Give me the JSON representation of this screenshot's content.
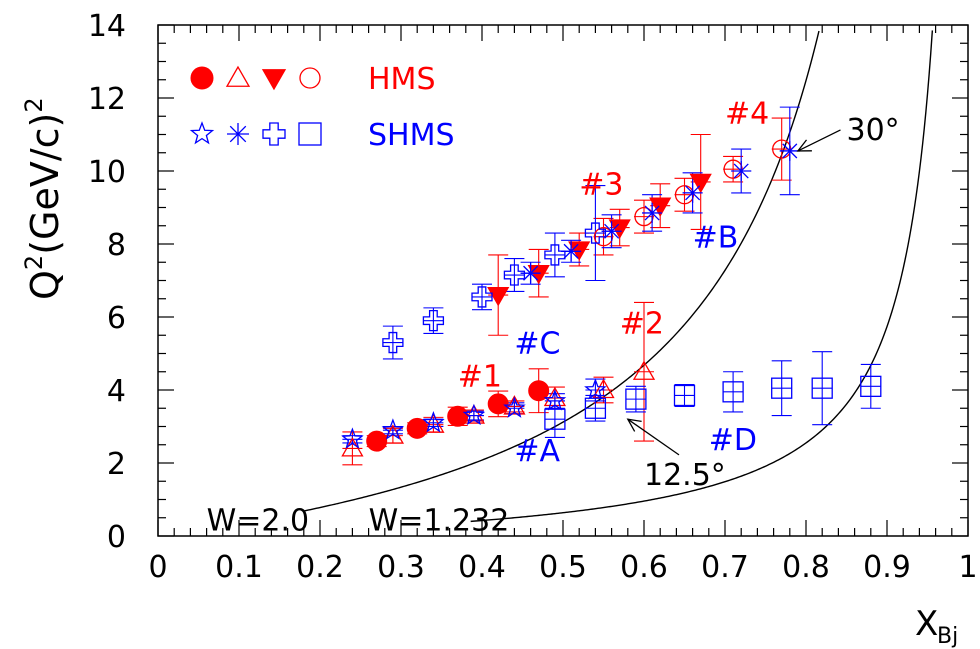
{
  "chart_data": {
    "type": "scatter",
    "xlabel": "X",
    "xlabel_sub": "Bj",
    "ylabel_base": "Q",
    "ylabel_sup": "2",
    "ylabel_rest": "(GeV/c)",
    "ylabel_sup2": "2",
    "xlim": [
      0,
      1
    ],
    "ylim": [
      0,
      14
    ],
    "x_ticks": [
      "0",
      "0.1",
      "0.2",
      "0.3",
      "0.4",
      "0.5",
      "0.6",
      "0.7",
      "0.8",
      "0.9",
      "1"
    ],
    "y_ticks": [
      "0",
      "2",
      "4",
      "6",
      "8",
      "10",
      "12",
      "14"
    ],
    "colors": {
      "hms": "#ff0000",
      "shms": "#0000ff",
      "axis": "#000000"
    },
    "legend": [
      {
        "text": "HMS",
        "color": "#ff0000",
        "markers": [
          "filled-circle",
          "open-triangle-up",
          "filled-triangle-down",
          "open-circle"
        ]
      },
      {
        "text": "SHMS",
        "color": "#0000ff",
        "markers": [
          "open-star",
          "asterisk",
          "open-cross",
          "open-square"
        ]
      }
    ],
    "series": [
      {
        "spectrometer": "HMS",
        "marker": "filled-circle",
        "color": "#ff0000",
        "points": [
          [
            0.27,
            2.6,
            0.15
          ],
          [
            0.32,
            2.95,
            0.15
          ],
          [
            0.37,
            3.28,
            0.25
          ],
          [
            0.42,
            3.62,
            0.35
          ],
          [
            0.47,
            3.98,
            0.6
          ]
        ]
      },
      {
        "spectrometer": "HMS",
        "marker": "open-triangle-up",
        "color": "#ff0000",
        "points": [
          [
            0.24,
            2.4,
            0.45
          ],
          [
            0.29,
            2.75,
            0.2
          ],
          [
            0.34,
            3.05,
            0.2
          ],
          [
            0.39,
            3.3,
            0.15
          ],
          [
            0.44,
            3.55,
            0.15
          ],
          [
            0.49,
            3.78,
            0.3
          ],
          [
            0.55,
            4.0,
            0.35
          ],
          [
            0.6,
            4.5,
            1.9
          ]
        ]
      },
      {
        "spectrometer": "HMS",
        "marker": "filled-triangle-down",
        "color": "#ff0000",
        "points": [
          [
            0.42,
            6.6,
            1.1
          ],
          [
            0.47,
            7.2,
            0.65
          ],
          [
            0.52,
            7.85,
            0.45
          ],
          [
            0.57,
            8.45,
            0.5
          ],
          [
            0.62,
            9.05,
            0.6
          ],
          [
            0.67,
            9.7,
            1.3
          ]
        ]
      },
      {
        "spectrometer": "HMS",
        "marker": "open-circle",
        "color": "#ff0000",
        "points": [
          [
            0.55,
            8.2,
            0.5
          ],
          [
            0.6,
            8.75,
            0.45
          ],
          [
            0.65,
            9.35,
            0.45
          ],
          [
            0.71,
            10.05,
            0.35
          ],
          [
            0.77,
            10.6,
            0.85
          ]
        ]
      },
      {
        "spectrometer": "SHMS",
        "marker": "open-star",
        "color": "#0000ff",
        "points": [
          [
            0.24,
            2.65,
            0.1
          ],
          [
            0.29,
            2.9,
            0.1
          ],
          [
            0.34,
            3.1,
            0.1
          ],
          [
            0.39,
            3.3,
            0.12
          ],
          [
            0.44,
            3.5,
            0.15
          ],
          [
            0.49,
            3.7,
            0.2
          ],
          [
            0.54,
            4.0,
            0.3
          ]
        ]
      },
      {
        "spectrometer": "SHMS",
        "marker": "asterisk",
        "color": "#0000ff",
        "points": [
          [
            0.46,
            7.2,
            0.3
          ],
          [
            0.51,
            7.8,
            0.3
          ],
          [
            0.56,
            8.35,
            0.45
          ],
          [
            0.61,
            8.85,
            0.5
          ],
          [
            0.66,
            9.4,
            0.55
          ],
          [
            0.72,
            10.0,
            0.6
          ],
          [
            0.78,
            10.55,
            1.2
          ]
        ]
      },
      {
        "spectrometer": "SHMS",
        "marker": "open-cross",
        "color": "#0000ff",
        "points": [
          [
            0.29,
            5.3,
            0.45
          ],
          [
            0.34,
            5.9,
            0.35
          ],
          [
            0.4,
            6.55,
            0.35
          ],
          [
            0.44,
            7.15,
            0.45
          ],
          [
            0.49,
            7.7,
            0.6
          ],
          [
            0.54,
            8.3,
            1.3
          ]
        ]
      },
      {
        "spectrometer": "SHMS",
        "marker": "open-square",
        "color": "#0000ff",
        "points": [
          [
            0.49,
            3.2,
            0.5
          ],
          [
            0.54,
            3.5,
            0.35
          ],
          [
            0.59,
            3.75,
            0.35
          ],
          [
            0.65,
            3.85,
            0.3
          ],
          [
            0.71,
            3.95,
            0.55
          ],
          [
            0.77,
            4.05,
            0.75
          ],
          [
            0.82,
            4.05,
            1.0
          ],
          [
            0.88,
            4.1,
            0.6
          ]
        ]
      }
    ],
    "curves": [
      {
        "label": "W=2.0",
        "W": 2.0
      },
      {
        "label": "W=1.232",
        "W": 1.232
      }
    ],
    "annotations": [
      {
        "text": "#1",
        "color": "#ff0000",
        "x": 0.37,
        "y": 4.1
      },
      {
        "text": "#2",
        "color": "#ff0000",
        "x": 0.57,
        "y": 5.55
      },
      {
        "text": "#3",
        "color": "#ff0000",
        "x": 0.52,
        "y": 9.35
      },
      {
        "text": "#4",
        "color": "#ff0000",
        "x": 0.7,
        "y": 11.3
      },
      {
        "text": "#A",
        "color": "#0000ff",
        "x": 0.44,
        "y": 2.05
      },
      {
        "text": "#B",
        "color": "#0000ff",
        "x": 0.66,
        "y": 7.9
      },
      {
        "text": "#C",
        "color": "#0000ff",
        "x": 0.44,
        "y": 5.0
      },
      {
        "text": "#D",
        "color": "#0000ff",
        "x": 0.68,
        "y": 2.35
      },
      {
        "text": "30°",
        "color": "#000000",
        "x": 0.85,
        "y": 10.85,
        "arrow_to": [
          0.79,
          10.55
        ]
      },
      {
        "text": "12.5°",
        "color": "#000000",
        "x": 0.6,
        "y": 1.4,
        "arrow_to": [
          0.58,
          3.2
        ]
      }
    ]
  }
}
